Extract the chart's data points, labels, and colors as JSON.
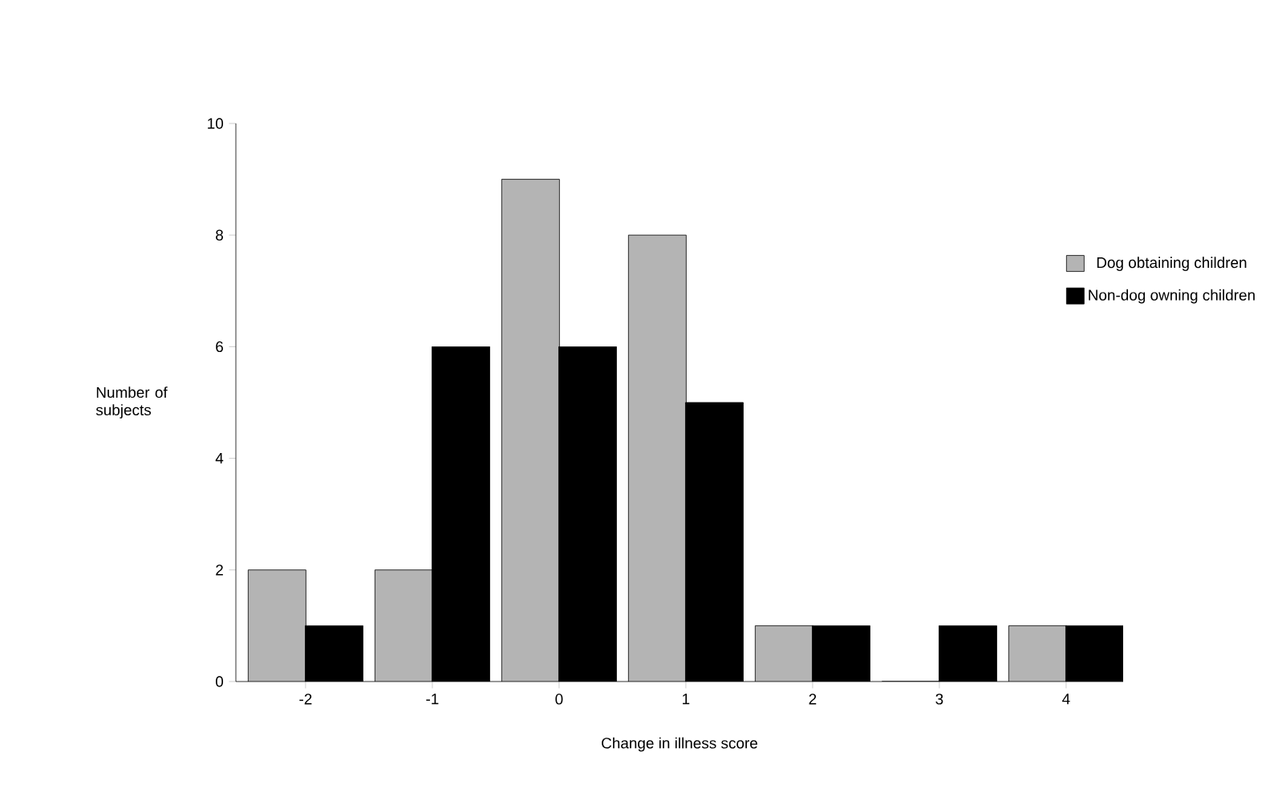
{
  "chart_data": {
    "type": "bar",
    "xlabel": "Change in illness score",
    "ylabel": "Number of subjects",
    "categories": [
      "-2",
      "-1",
      "0",
      "1",
      "2",
      "3",
      "4"
    ],
    "series": [
      {
        "name": "Dog obtaining children",
        "color": "#b4b4b4",
        "values": [
          2,
          2,
          9,
          8,
          1,
          0,
          1
        ]
      },
      {
        "name": "Non-dog owning children",
        "color": "#000000",
        "values": [
          1,
          6,
          6,
          5,
          1,
          1,
          1
        ]
      }
    ],
    "ylim": [
      0,
      10
    ],
    "yticks": [
      0,
      2,
      4,
      6,
      8,
      10
    ],
    "grid": false,
    "legend": "right"
  }
}
